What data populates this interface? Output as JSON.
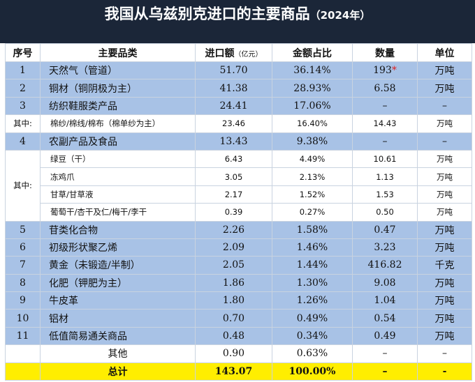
{
  "title": "我国从乌兹别克进口的主要商品",
  "title_year": "（2024年）",
  "headers": {
    "no": "序号",
    "name": "主要品类",
    "amount": "进口额",
    "amount_unit": "（亿元）",
    "share": "金额占比",
    "quantity": "数量",
    "unit": "单位"
  },
  "items": [
    {
      "no": "1",
      "name": "天然气（管道）",
      "amount": "51.70",
      "share": "36.14%",
      "quantity": "193",
      "quantity_mark": "*",
      "unit": "万吨"
    },
    {
      "no": "2",
      "name": "铜材（铜阴极为主）",
      "amount": "41.38",
      "share": "28.93%",
      "quantity": "6.58",
      "unit": "万吨"
    },
    {
      "no": "3",
      "name": "纺织鞋服类产品",
      "amount": "24.41",
      "share": "17.06%",
      "quantity": "–",
      "unit": "–"
    },
    {
      "label": "其中:",
      "rows": [
        {
          "name": "棉纱/棉线/棉布（棉单纱为主）",
          "amount": "23.46",
          "share": "16.40%",
          "quantity": "14.43",
          "unit": "万吨"
        }
      ]
    },
    {
      "no": "4",
      "name": "农副产品及食品",
      "amount": "13.43",
      "share": "9.38%",
      "quantity": "–",
      "unit": "–"
    },
    {
      "label": "其中:",
      "rows": [
        {
          "name": "绿豆（干）",
          "amount": "6.43",
          "share": "4.49%",
          "quantity": "10.61",
          "unit": "万吨"
        },
        {
          "name": "冻鸡爪",
          "amount": "3.05",
          "share": "2.13%",
          "quantity": "1.13",
          "unit": "万吨"
        },
        {
          "name": "甘草/甘草液",
          "amount": "2.17",
          "share": "1.52%",
          "quantity": "1.53",
          "unit": "万吨"
        },
        {
          "name": "葡萄干/杏干及仁/梅干/李干",
          "amount": "0.39",
          "share": "0.27%",
          "quantity": "0.50",
          "unit": "万吨"
        }
      ]
    },
    {
      "no": "5",
      "name": "苷类化合物",
      "amount": "2.26",
      "share": "1.58%",
      "quantity": "0.47",
      "unit": "万吨"
    },
    {
      "no": "6",
      "name": "初级形状聚乙烯",
      "amount": "2.09",
      "share": "1.46%",
      "quantity": "3.23",
      "unit": "万吨"
    },
    {
      "no": "7",
      "name": "黄金（未锻造/半制）",
      "amount": "2.05",
      "share": "1.44%",
      "quantity": "416.82",
      "unit": "千克"
    },
    {
      "no": "8",
      "name": "化肥（钾肥为主）",
      "amount": "1.86",
      "share": "1.30%",
      "quantity": "9.08",
      "unit": "万吨"
    },
    {
      "no": "9",
      "name": "牛皮革",
      "amount": "1.80",
      "share": "1.26%",
      "quantity": "1.04",
      "unit": "万吨"
    },
    {
      "no": "10",
      "name": "铝材",
      "amount": "0.70",
      "share": "0.49%",
      "quantity": "0.54",
      "unit": "万吨"
    },
    {
      "no": "11",
      "name": "低值简易通关商品",
      "amount": "0.48",
      "share": "0.34%",
      "quantity": "0.49",
      "unit": "万吨"
    },
    {
      "name": "其他",
      "amount": "0.90",
      "share": "0.63%",
      "quantity": "–",
      "unit": "–"
    }
  ],
  "total": {
    "name": "总计",
    "amount": "143.07",
    "share": "100.00%",
    "quantity": "–",
    "unit": "-"
  }
}
